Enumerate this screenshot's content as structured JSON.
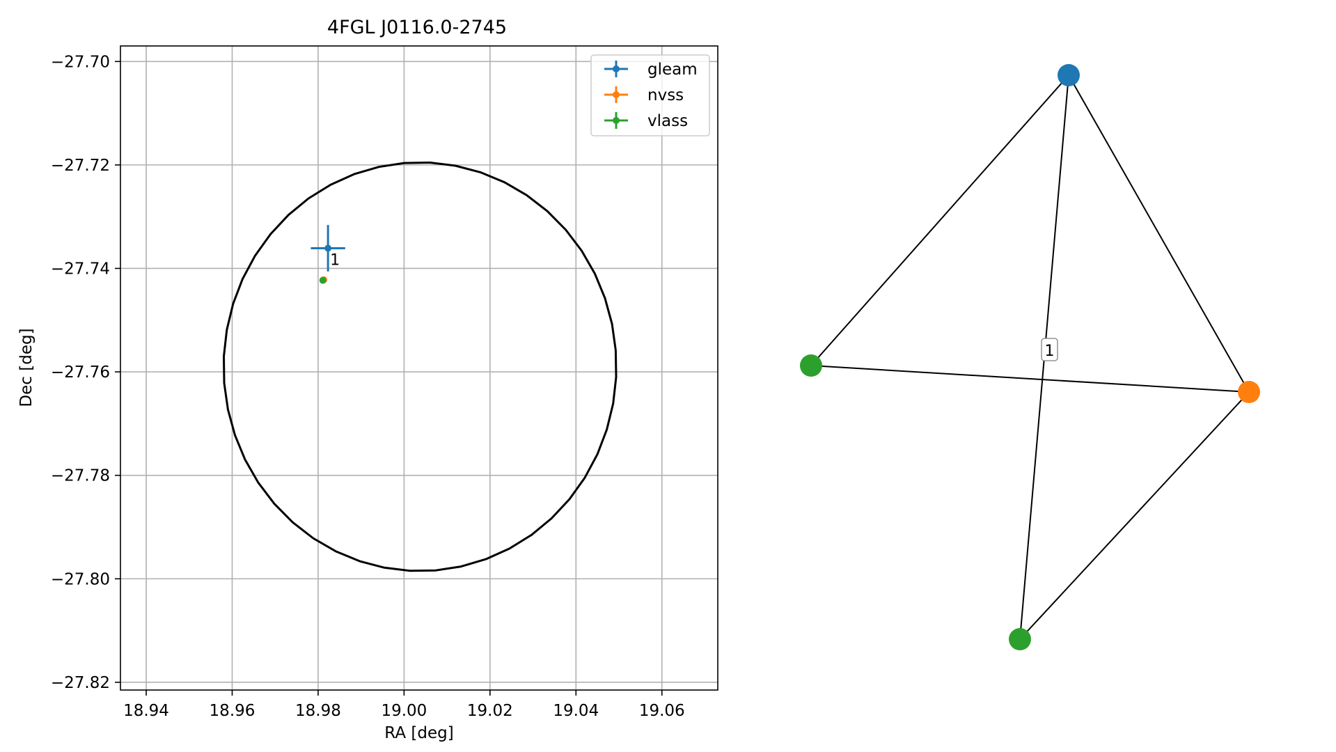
{
  "chart_data": [
    {
      "type": "scatter",
      "title": "4FGL J0116.0-2745",
      "xlabel": "RA [deg]",
      "ylabel": "Dec [deg]",
      "xlim": [
        18.934,
        19.073
      ],
      "ylim": [
        -27.8215,
        -27.697
      ],
      "xticks": [
        18.94,
        18.96,
        18.98,
        19.0,
        19.02,
        19.04,
        19.06
      ],
      "xtick_labels": [
        "18.94",
        "18.96",
        "18.98",
        "19.00",
        "19.02",
        "19.04",
        "19.06"
      ],
      "yticks": [
        -27.7,
        -27.72,
        -27.74,
        -27.76,
        -27.78,
        -27.8,
        -27.82
      ],
      "ytick_labels": [
        "−27.70",
        "−27.72",
        "−27.74",
        "−27.76",
        "−27.78",
        "−27.80",
        "−27.82"
      ],
      "grid": true,
      "legend_position": "top-right",
      "series": [
        {
          "name": "gleam",
          "color": "#1f77b4",
          "points": [
            {
              "x": 18.9823,
              "y": -27.7361,
              "xerr": 0.004,
              "yerr": 0.0045,
              "label": "1"
            }
          ]
        },
        {
          "name": "nvss",
          "color": "#ff7f0e",
          "points": [
            {
              "x": 18.9813,
              "y": -27.7422,
              "xerr": 0,
              "yerr": 0
            }
          ]
        },
        {
          "name": "vlass",
          "color": "#2ca02c",
          "points": [
            {
              "x": 18.9811,
              "y": -27.7423,
              "xerr": 0,
              "yerr": 0
            }
          ]
        }
      ],
      "circle": {
        "center_x": 19.0037,
        "center_y": -27.759,
        "radius_ra": 0.0457,
        "radius_dec": 0.0395,
        "color": "#000000"
      }
    },
    {
      "type": "network",
      "nodes": [
        {
          "id": "a",
          "color": "#1f77b4"
        },
        {
          "id": "b",
          "color": "#ff7f0e"
        },
        {
          "id": "c",
          "color": "#2ca02c"
        },
        {
          "id": "d",
          "color": "#2ca02c"
        }
      ],
      "edges": [
        {
          "source": "a",
          "target": "b"
        },
        {
          "source": "a",
          "target": "c"
        },
        {
          "source": "a",
          "target": "d"
        },
        {
          "source": "b",
          "target": "c"
        },
        {
          "source": "b",
          "target": "d"
        }
      ],
      "edge_label": "1"
    }
  ]
}
